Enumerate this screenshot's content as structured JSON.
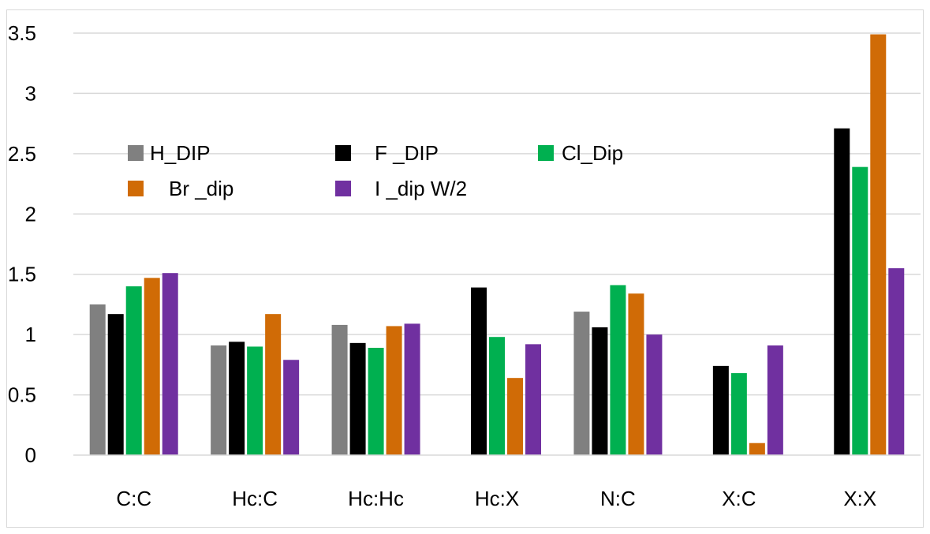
{
  "chart_data": {
    "type": "bar",
    "categories": [
      "C:C",
      "Hc:C",
      "Hc:Hc",
      "Hc:X",
      "N:C",
      "X:C",
      "X:X"
    ],
    "series": [
      {
        "name": "H_DIP",
        "color": "#808080",
        "values": [
          1.25,
          0.91,
          1.08,
          null,
          1.19,
          null,
          null
        ]
      },
      {
        "name": "F _DIP",
        "color": "#000000",
        "values": [
          1.17,
          0.94,
          0.93,
          1.39,
          1.06,
          0.74,
          2.71
        ]
      },
      {
        "name": "Cl_Dip",
        "color": "#00b050",
        "values": [
          1.4,
          0.9,
          0.89,
          0.98,
          1.41,
          0.68,
          2.39
        ]
      },
      {
        "name": "Br _dip",
        "color": "#d06b06",
        "values": [
          1.47,
          1.17,
          1.07,
          0.64,
          1.34,
          0.1,
          3.49
        ]
      },
      {
        "name": "I _dip W/2",
        "color": "#7030a0",
        "values": [
          1.51,
          0.79,
          1.09,
          0.92,
          1.0,
          0.91,
          1.55
        ]
      }
    ],
    "yticks": [
      "0",
      "0.5",
      "1",
      "1.5",
      "2",
      "2.5",
      "3",
      "3.5"
    ],
    "ylim": [
      0,
      3.5
    ],
    "grid": true,
    "legend": "upper-left inside plot",
    "title": "",
    "xlabel": "",
    "ylabel": ""
  }
}
